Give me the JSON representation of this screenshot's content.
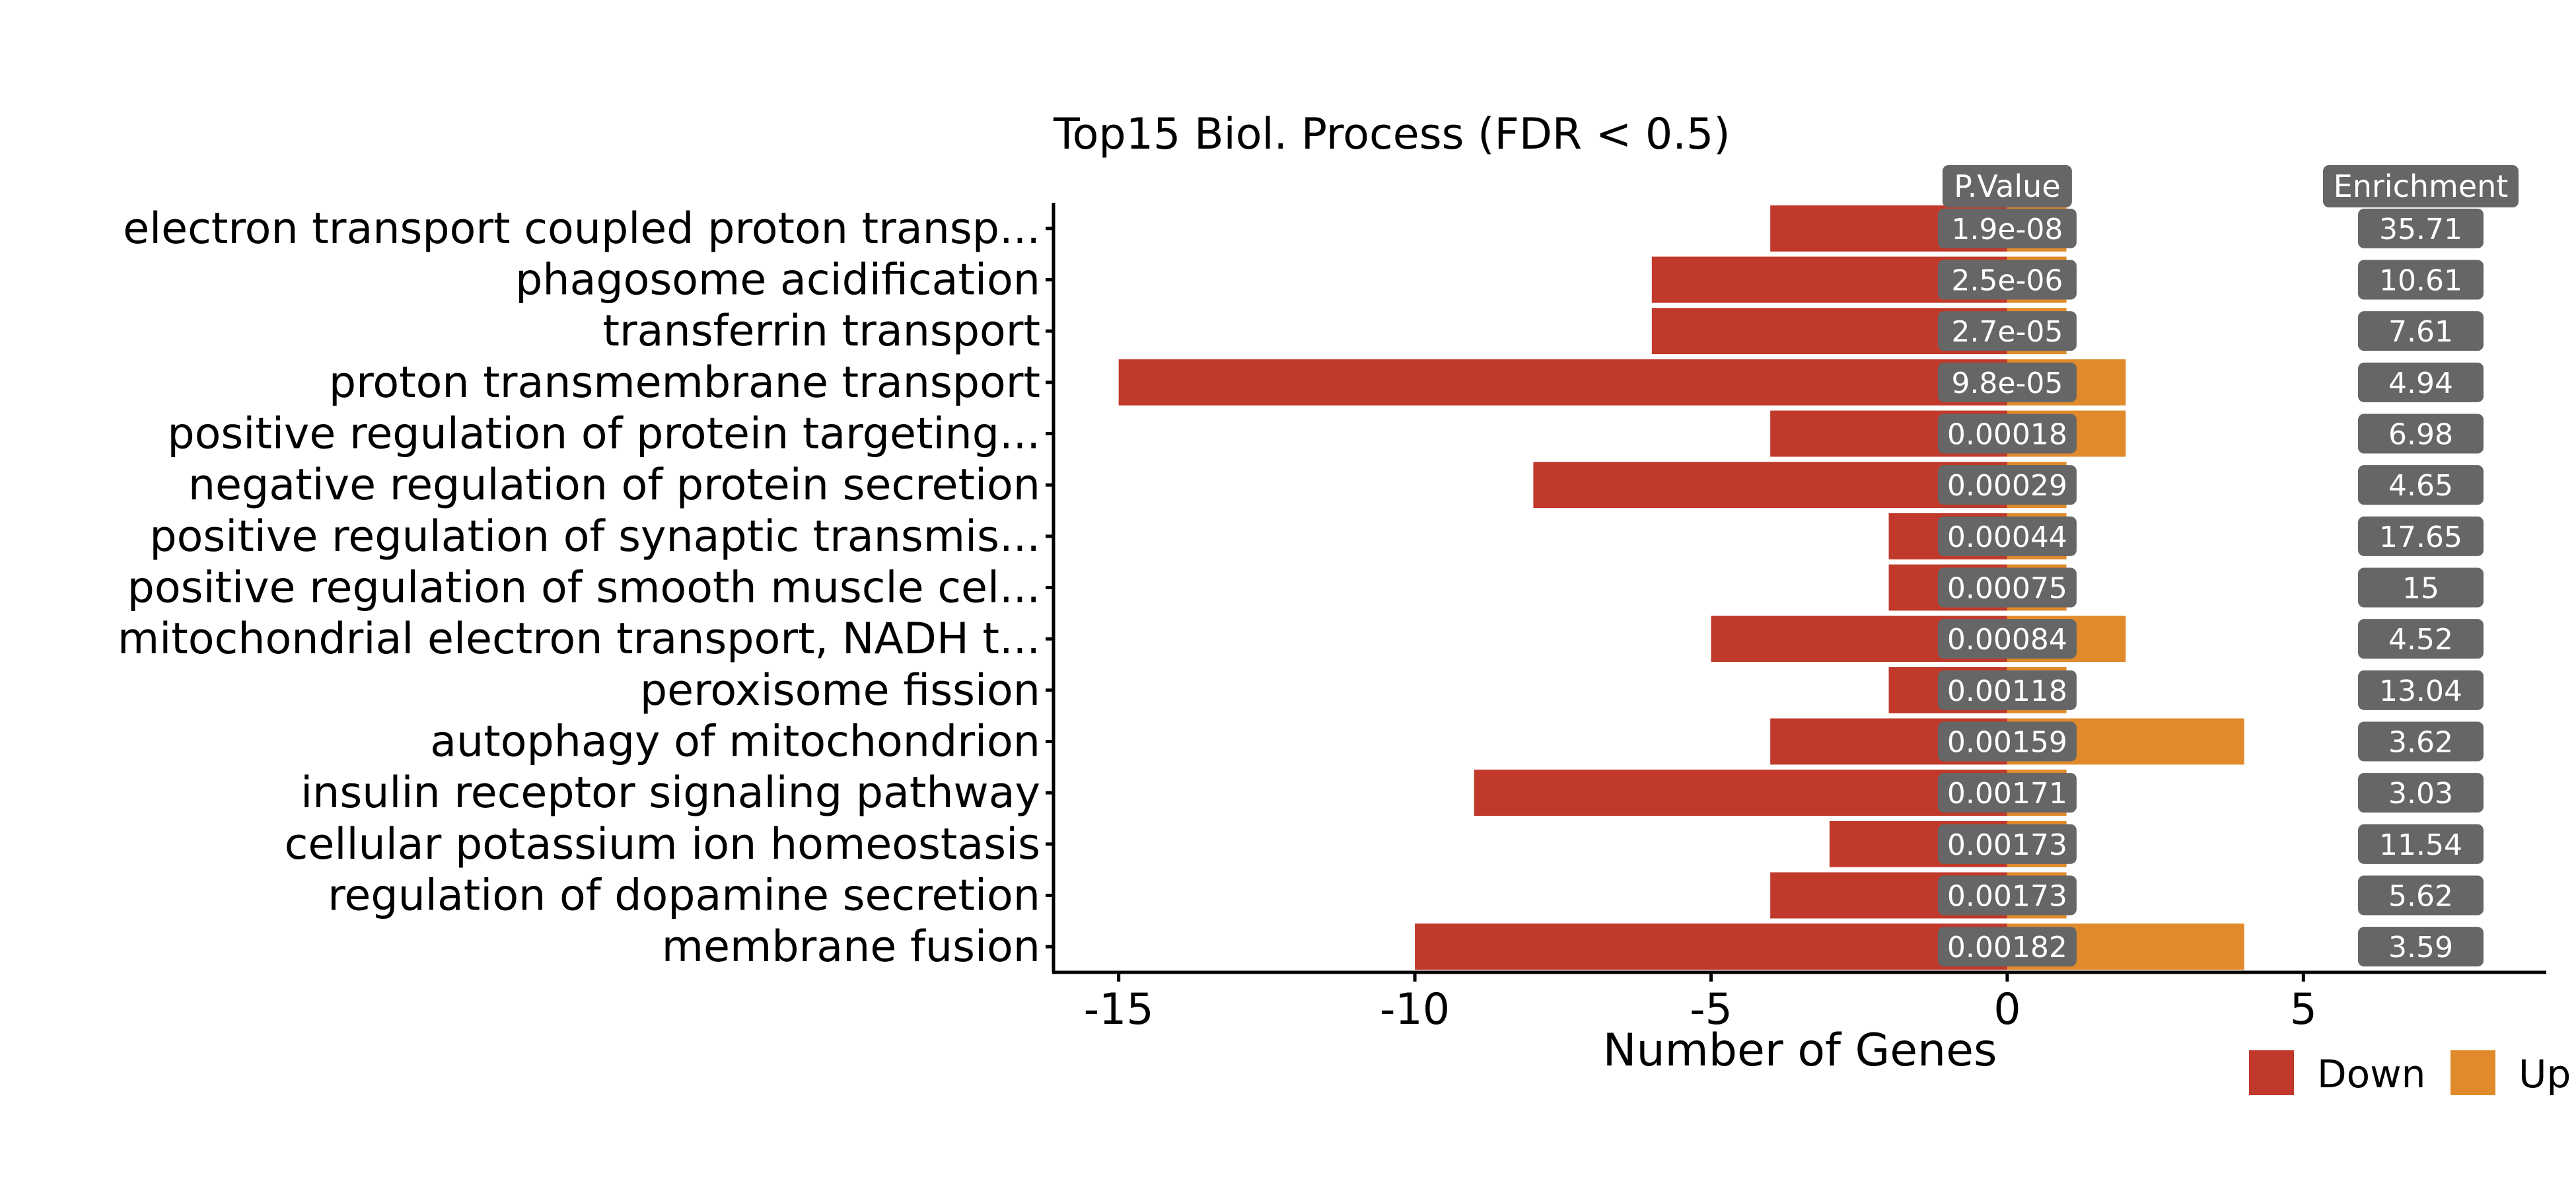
{
  "chart_data": {
    "type": "bar",
    "orientation": "horizontal",
    "title": "Top15 Biol. Process (FDR < 0.5)",
    "xlabel": "Number of Genes",
    "ylabel": "",
    "xlim": [
      -16.1,
      9.1
    ],
    "x_ticks": [
      -15,
      -10,
      -5,
      0,
      5
    ],
    "x_tick_labels": [
      "-15",
      "-10",
      "-5",
      "0",
      "5"
    ],
    "legend_position": "bottom-right",
    "categories": [
      "electron transport coupled proton transp...",
      "phagosome acidification",
      "transferrin transport",
      "proton transmembrane transport",
      "positive regulation of protein targeting...",
      "negative regulation of protein secretion",
      "positive regulation of synaptic transmis...",
      "positive regulation of smooth muscle cel...",
      "mitochondrial electron transport, NADH t...",
      "peroxisome fission",
      "autophagy of mitochondrion",
      "insulin receptor signaling pathway",
      "cellular potassium ion homeostasis",
      "regulation of dopamine secretion",
      "membrane fusion"
    ],
    "series": [
      {
        "name": "Down",
        "color": "#c0392b",
        "values": [
          -4,
          -6,
          -6,
          -15,
          -4,
          -8,
          -2,
          -2,
          -5,
          -2,
          -4,
          -9,
          -3,
          -4,
          -10
        ]
      },
      {
        "name": "Up",
        "color": "#e08a2b",
        "values": [
          1,
          1,
          1,
          2,
          2,
          1,
          1,
          1,
          2,
          1,
          4,
          1,
          1,
          1,
          4
        ]
      }
    ],
    "pvalue_header": "P.Value",
    "pvalues": [
      "1.9e-08",
      "2.5e-06",
      "2.7e-05",
      "9.8e-05",
      "0.00018",
      "0.00029",
      "0.00044",
      "0.00075",
      "0.00084",
      "0.00118",
      "0.00159",
      "0.00171",
      "0.00173",
      "0.00173",
      "0.00182"
    ],
    "enrichment_header": "Enrichment",
    "enrichment": [
      "35.71",
      "10.61",
      "7.61",
      "4.94",
      "6.98",
      "4.65",
      "17.65",
      "15",
      "4.52",
      "13.04",
      "3.62",
      "3.03",
      "11.54",
      "5.62",
      "3.59"
    ],
    "label_box_color": "#666666"
  }
}
